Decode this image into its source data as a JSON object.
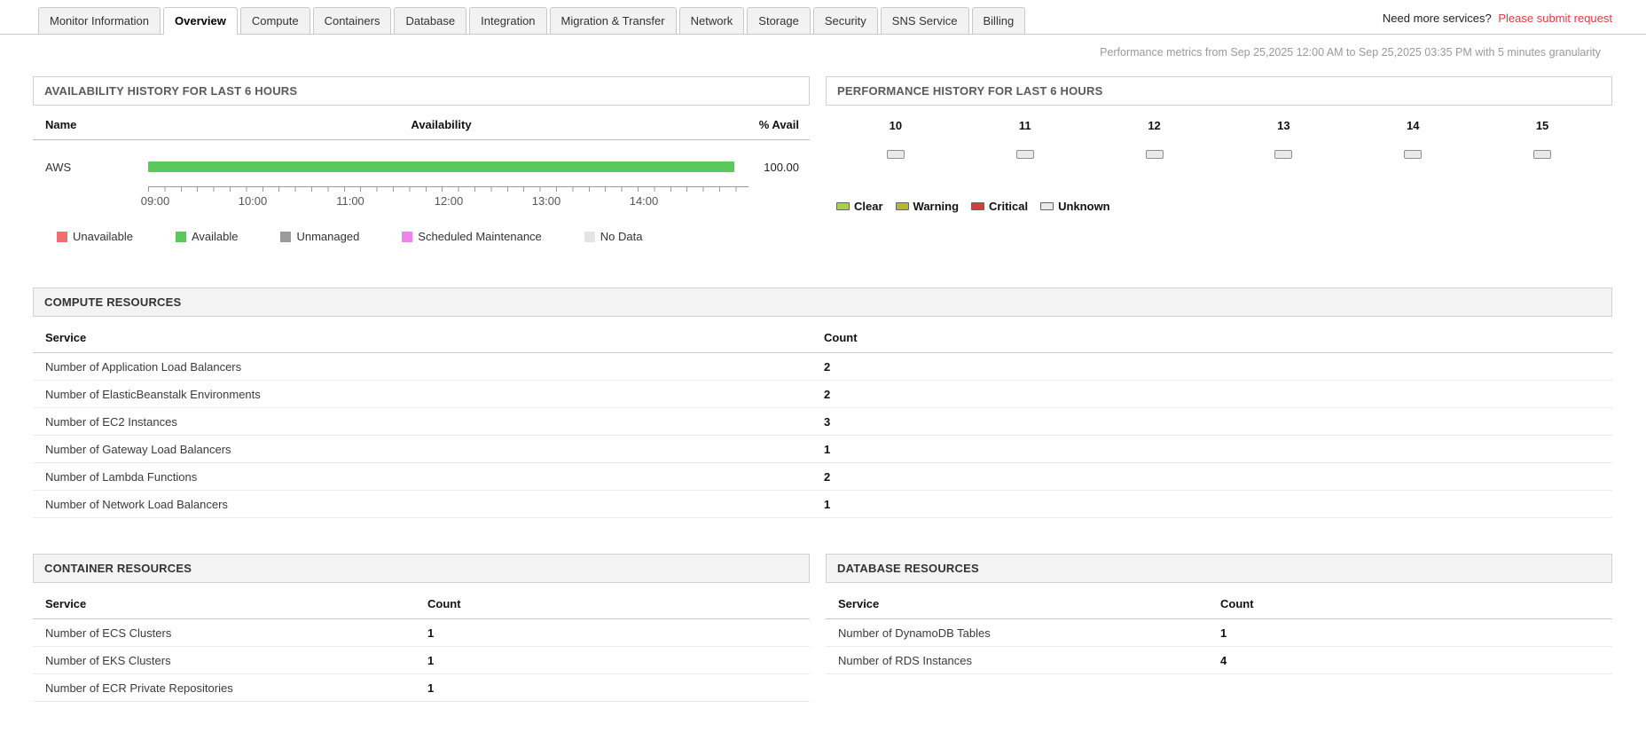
{
  "tabbar": {
    "tabs": [
      {
        "label": "Monitor Information",
        "active": false
      },
      {
        "label": "Overview",
        "active": true
      },
      {
        "label": "Compute",
        "active": false
      },
      {
        "label": "Containers",
        "active": false
      },
      {
        "label": "Database",
        "active": false
      },
      {
        "label": "Integration",
        "active": false
      },
      {
        "label": "Migration & Transfer",
        "active": false
      },
      {
        "label": "Network",
        "active": false
      },
      {
        "label": "Storage",
        "active": false
      },
      {
        "label": "Security",
        "active": false
      },
      {
        "label": "SNS Service",
        "active": false
      },
      {
        "label": "Billing",
        "active": false
      }
    ],
    "need_more_text": "Need more services?",
    "submit_request_label": "Please submit request"
  },
  "metrics_note": "Performance metrics from Sep 25,2025 12:00 AM to Sep 25,2025 03:35 PM with 5 minutes granularity",
  "availability": {
    "title": "AVAILABILITY HISTORY FOR LAST 6 HOURS",
    "col_name": "Name",
    "col_availability": "Availability",
    "col_percent": "% Avail",
    "rows": [
      {
        "name": "AWS",
        "percent": "100.00",
        "bar_color": "#5bc85b"
      }
    ],
    "axis_ticks": [
      "09:00",
      "10:00",
      "11:00",
      "12:00",
      "13:00",
      "14:00"
    ],
    "legend": [
      {
        "label": "Unavailable",
        "color": "#f26d6d"
      },
      {
        "label": "Available",
        "color": "#5bc85b"
      },
      {
        "label": "Unmanaged",
        "color": "#9b9b9b"
      },
      {
        "label": "Scheduled Maintenance",
        "color": "#ee82ee"
      },
      {
        "label": "No Data",
        "color": "#e4e4e4"
      }
    ]
  },
  "performance": {
    "title": "PERFORMANCE HISTORY FOR LAST 6 HOURS",
    "hours": [
      "10",
      "11",
      "12",
      "13",
      "14",
      "15"
    ],
    "legend": [
      {
        "label": "Clear",
        "color": "#a8cf4d"
      },
      {
        "label": "Warning",
        "color": "#b7b731"
      },
      {
        "label": "Critical",
        "color": "#dd3b3b"
      },
      {
        "label": "Unknown",
        "color": "#e9e9e9"
      }
    ]
  },
  "compute": {
    "title": "COMPUTE RESOURCES",
    "col_service": "Service",
    "col_count": "Count",
    "rows": [
      {
        "service": "Number of Application Load Balancers",
        "count": "2"
      },
      {
        "service": "Number of ElasticBeanstalk Environments",
        "count": "2"
      },
      {
        "service": "Number of EC2 Instances",
        "count": "3"
      },
      {
        "service": "Number of Gateway Load Balancers",
        "count": "1"
      },
      {
        "service": "Number of Lambda Functions",
        "count": "2"
      },
      {
        "service": "Number of Network Load Balancers",
        "count": "1"
      }
    ]
  },
  "containers": {
    "title": "CONTAINER RESOURCES",
    "col_service": "Service",
    "col_count": "Count",
    "rows": [
      {
        "service": "Number of ECS Clusters",
        "count": "1"
      },
      {
        "service": "Number of EKS Clusters",
        "count": "1"
      },
      {
        "service": "Number of ECR Private Repositories",
        "count": "1"
      }
    ]
  },
  "database": {
    "title": "DATABASE RESOURCES",
    "col_service": "Service",
    "col_count": "Count",
    "rows": [
      {
        "service": "Number of DynamoDB Tables",
        "count": "1"
      },
      {
        "service": "Number of RDS Instances",
        "count": "4"
      }
    ]
  }
}
